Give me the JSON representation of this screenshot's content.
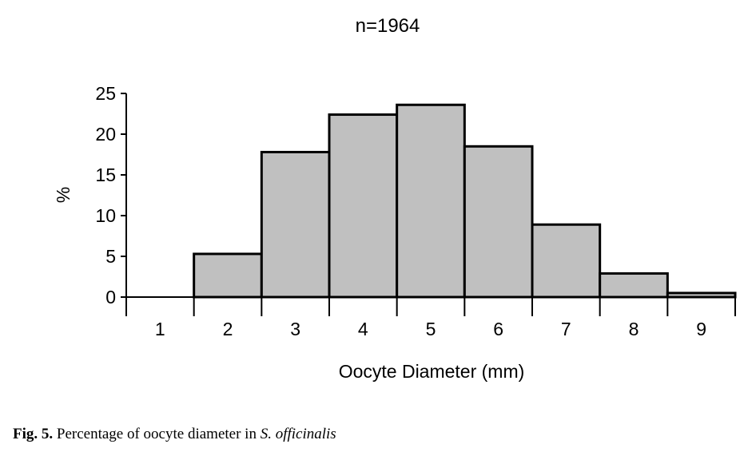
{
  "chart_data": {
    "type": "bar",
    "title": "n=1964",
    "xlabel": "Oocyte Diameter (mm)",
    "ylabel": "%",
    "categories": [
      "1",
      "2",
      "3",
      "4",
      "5",
      "6",
      "7",
      "8",
      "9"
    ],
    "values": [
      0,
      5.3,
      17.8,
      22.4,
      23.6,
      18.5,
      8.9,
      2.9,
      0.5
    ],
    "ylim": [
      0,
      25
    ],
    "yticks": [
      0,
      5,
      10,
      15,
      20,
      25
    ],
    "grid": false,
    "legend": "none",
    "bar_color": "#c0c0c0",
    "edge_color": "#000000"
  },
  "caption": {
    "label": "Fig. 5.",
    "text": " Percentage of oocyte diameter in ",
    "species": "S. officinalis"
  }
}
